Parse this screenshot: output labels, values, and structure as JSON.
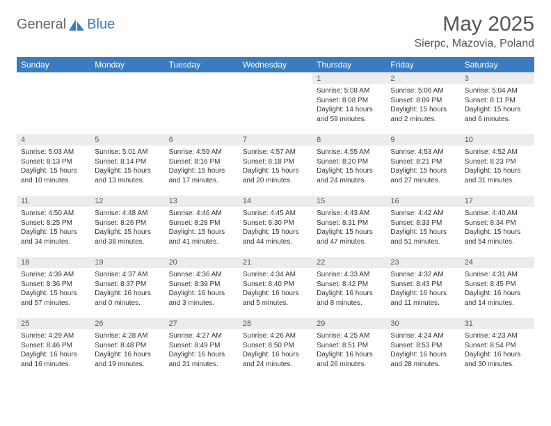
{
  "logo": {
    "text1": "General",
    "text2": "Blue",
    "shape_color": "#3b7bbf"
  },
  "title": "May 2025",
  "location": "Sierpc, Mazovia, Poland",
  "colors": {
    "header_bg": "#3b7bbf",
    "header_text": "#ffffff",
    "daybar_bg": "#ececec",
    "body_text": "#333333",
    "title_text": "#555555"
  },
  "dow": [
    "Sunday",
    "Monday",
    "Tuesday",
    "Wednesday",
    "Thursday",
    "Friday",
    "Saturday"
  ],
  "weeks": [
    [
      null,
      null,
      null,
      null,
      {
        "n": "1",
        "sr": "5:08 AM",
        "ss": "8:08 PM",
        "dl": "14 hours and 59 minutes."
      },
      {
        "n": "2",
        "sr": "5:06 AM",
        "ss": "8:09 PM",
        "dl": "15 hours and 2 minutes."
      },
      {
        "n": "3",
        "sr": "5:04 AM",
        "ss": "8:11 PM",
        "dl": "15 hours and 6 minutes."
      }
    ],
    [
      {
        "n": "4",
        "sr": "5:03 AM",
        "ss": "8:13 PM",
        "dl": "15 hours and 10 minutes."
      },
      {
        "n": "5",
        "sr": "5:01 AM",
        "ss": "8:14 PM",
        "dl": "15 hours and 13 minutes."
      },
      {
        "n": "6",
        "sr": "4:59 AM",
        "ss": "8:16 PM",
        "dl": "15 hours and 17 minutes."
      },
      {
        "n": "7",
        "sr": "4:57 AM",
        "ss": "8:18 PM",
        "dl": "15 hours and 20 minutes."
      },
      {
        "n": "8",
        "sr": "4:55 AM",
        "ss": "8:20 PM",
        "dl": "15 hours and 24 minutes."
      },
      {
        "n": "9",
        "sr": "4:53 AM",
        "ss": "8:21 PM",
        "dl": "15 hours and 27 minutes."
      },
      {
        "n": "10",
        "sr": "4:52 AM",
        "ss": "8:23 PM",
        "dl": "15 hours and 31 minutes."
      }
    ],
    [
      {
        "n": "11",
        "sr": "4:50 AM",
        "ss": "8:25 PM",
        "dl": "15 hours and 34 minutes."
      },
      {
        "n": "12",
        "sr": "4:48 AM",
        "ss": "8:26 PM",
        "dl": "15 hours and 38 minutes."
      },
      {
        "n": "13",
        "sr": "4:46 AM",
        "ss": "8:28 PM",
        "dl": "15 hours and 41 minutes."
      },
      {
        "n": "14",
        "sr": "4:45 AM",
        "ss": "8:30 PM",
        "dl": "15 hours and 44 minutes."
      },
      {
        "n": "15",
        "sr": "4:43 AM",
        "ss": "8:31 PM",
        "dl": "15 hours and 47 minutes."
      },
      {
        "n": "16",
        "sr": "4:42 AM",
        "ss": "8:33 PM",
        "dl": "15 hours and 51 minutes."
      },
      {
        "n": "17",
        "sr": "4:40 AM",
        "ss": "8:34 PM",
        "dl": "15 hours and 54 minutes."
      }
    ],
    [
      {
        "n": "18",
        "sr": "4:39 AM",
        "ss": "8:36 PM",
        "dl": "15 hours and 57 minutes."
      },
      {
        "n": "19",
        "sr": "4:37 AM",
        "ss": "8:37 PM",
        "dl": "16 hours and 0 minutes."
      },
      {
        "n": "20",
        "sr": "4:36 AM",
        "ss": "8:39 PM",
        "dl": "16 hours and 3 minutes."
      },
      {
        "n": "21",
        "sr": "4:34 AM",
        "ss": "8:40 PM",
        "dl": "16 hours and 5 minutes."
      },
      {
        "n": "22",
        "sr": "4:33 AM",
        "ss": "8:42 PM",
        "dl": "16 hours and 8 minutes."
      },
      {
        "n": "23",
        "sr": "4:32 AM",
        "ss": "8:43 PM",
        "dl": "16 hours and 11 minutes."
      },
      {
        "n": "24",
        "sr": "4:31 AM",
        "ss": "8:45 PM",
        "dl": "16 hours and 14 minutes."
      }
    ],
    [
      {
        "n": "25",
        "sr": "4:29 AM",
        "ss": "8:46 PM",
        "dl": "16 hours and 16 minutes."
      },
      {
        "n": "26",
        "sr": "4:28 AM",
        "ss": "8:48 PM",
        "dl": "16 hours and 19 minutes."
      },
      {
        "n": "27",
        "sr": "4:27 AM",
        "ss": "8:49 PM",
        "dl": "16 hours and 21 minutes."
      },
      {
        "n": "28",
        "sr": "4:26 AM",
        "ss": "8:50 PM",
        "dl": "16 hours and 24 minutes."
      },
      {
        "n": "29",
        "sr": "4:25 AM",
        "ss": "8:51 PM",
        "dl": "16 hours and 26 minutes."
      },
      {
        "n": "30",
        "sr": "4:24 AM",
        "ss": "8:53 PM",
        "dl": "16 hours and 28 minutes."
      },
      {
        "n": "31",
        "sr": "4:23 AM",
        "ss": "8:54 PM",
        "dl": "16 hours and 30 minutes."
      }
    ]
  ],
  "labels": {
    "sunrise": "Sunrise: ",
    "sunset": "Sunset: ",
    "daylight": "Daylight: "
  }
}
